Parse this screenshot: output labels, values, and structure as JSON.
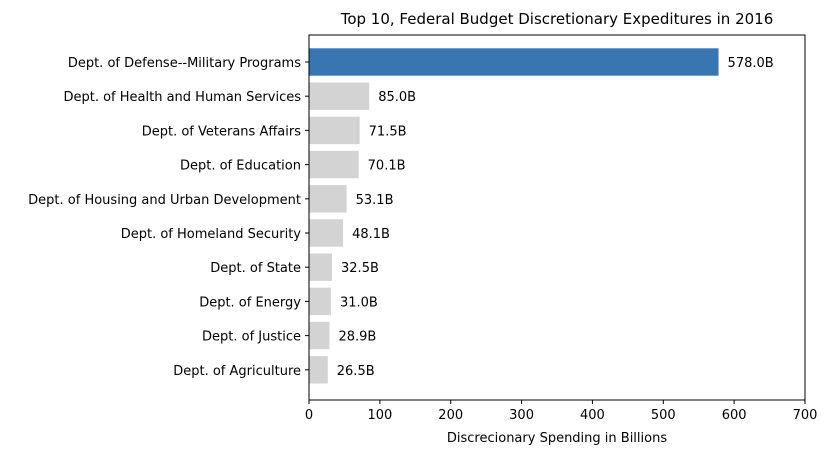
{
  "chart_data": {
    "type": "bar",
    "orientation": "horizontal",
    "title": "Top 10, Federal Budget Discretionary Expeditures in 2016",
    "xlabel": "Discrecionary Spending in Billions",
    "ylabel": "",
    "xlim": [
      0,
      700
    ],
    "xticks": [
      "0",
      "100",
      "200",
      "300",
      "400",
      "500",
      "600",
      "700"
    ],
    "grid": false,
    "categories": [
      "Dept. of Defense--Military Programs",
      "Dept. of Health and Human Services",
      "Dept. of Veterans Affairs",
      "Dept. of Education",
      "Dept. of Housing and Urban Development",
      "Dept. of Homeland Security",
      "Dept. of State",
      "Dept. of Energy",
      "Dept. of Justice",
      "Dept. of Agriculture"
    ],
    "values": [
      578.0,
      85.0,
      71.5,
      70.1,
      53.1,
      48.1,
      32.5,
      31.0,
      28.9,
      26.5
    ],
    "value_labels": [
      "578.0B",
      "85.0B",
      "71.5B",
      "70.1B",
      "53.1B",
      "48.1B",
      "32.5B",
      "31.0B",
      "28.9B",
      "26.5B"
    ],
    "colors": {
      "highlight": "#3776b0",
      "default": "#d3d3d3"
    },
    "highlight_index": 0
  }
}
